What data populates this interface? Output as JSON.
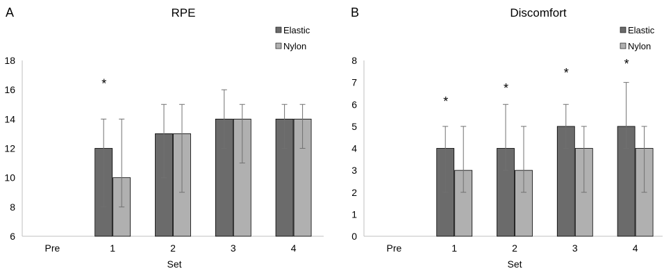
{
  "colors": {
    "elastic": "#6b6b6b",
    "nylon": "#b0b0b0",
    "axis": "#bfbfbf",
    "error": "#707070"
  },
  "legend": [
    "Elastic",
    "Nylon"
  ],
  "chart_data": [
    {
      "type": "bar",
      "panel_letter": "A",
      "title": "RPE",
      "xlabel": "Set",
      "ylabel": "",
      "categories": [
        "Pre",
        "1",
        "2",
        "3",
        "4"
      ],
      "ylim": [
        6,
        18
      ],
      "yticks": [
        "6",
        "8",
        "10",
        "12",
        "14",
        "16",
        "18"
      ],
      "grid": false,
      "legend_position": "top-right",
      "series": [
        {
          "name": "Elastic",
          "values": [
            null,
            12,
            13,
            14,
            14
          ],
          "err_low": [
            null,
            8,
            10,
            12,
            12
          ],
          "err_high": [
            null,
            14,
            15,
            16,
            15
          ]
        },
        {
          "name": "Nylon",
          "values": [
            null,
            10,
            13,
            14,
            14
          ],
          "err_low": [
            null,
            8,
            9,
            11,
            12
          ],
          "err_high": [
            null,
            14,
            15,
            15,
            15
          ]
        }
      ],
      "significance": {
        "marker": "*",
        "categories": [
          "1"
        ],
        "y": [
          16.5
        ]
      }
    },
    {
      "type": "bar",
      "panel_letter": "B",
      "title": "Discomfort",
      "xlabel": "Set",
      "ylabel": "",
      "categories": [
        "Pre",
        "1",
        "2",
        "3",
        "4"
      ],
      "ylim": [
        0,
        8
      ],
      "yticks": [
        "0",
        "1",
        "2",
        "3",
        "4",
        "5",
        "6",
        "7",
        "8"
      ],
      "grid": false,
      "legend_position": "top-right",
      "series": [
        {
          "name": "Elastic",
          "values": [
            null,
            4,
            4,
            5,
            5
          ],
          "err_low": [
            null,
            2,
            3,
            4,
            4
          ],
          "err_high": [
            null,
            5,
            6,
            6,
            7
          ]
        },
        {
          "name": "Nylon",
          "values": [
            null,
            3,
            3,
            4,
            4
          ],
          "err_low": [
            null,
            2,
            2,
            2,
            2
          ],
          "err_high": [
            null,
            5,
            5,
            5,
            5
          ]
        }
      ],
      "significance": {
        "marker": "*",
        "categories": [
          "1",
          "2",
          "3",
          "4"
        ],
        "y": [
          6.2,
          6.8,
          7.5,
          7.9
        ]
      }
    }
  ]
}
